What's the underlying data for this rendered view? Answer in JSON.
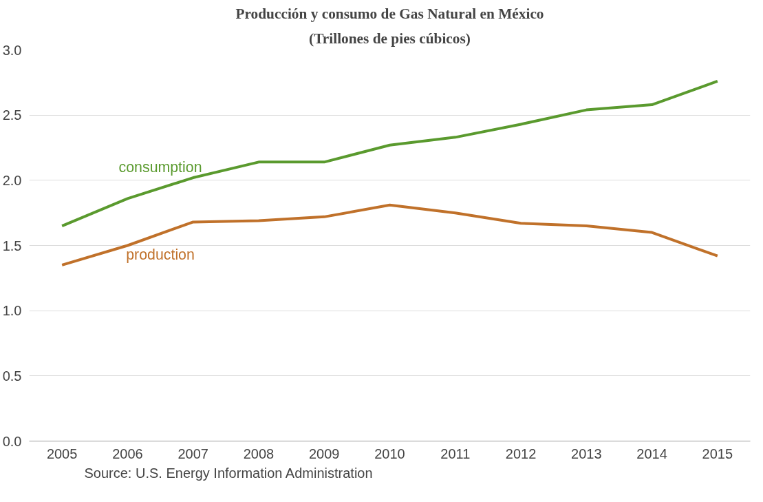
{
  "chart_data": {
    "type": "line",
    "title": "Producción y consumo de Gas Natural en México",
    "subtitle": "(Trillones de pies cúbicos)",
    "categories": [
      "2005",
      "2006",
      "2007",
      "2008",
      "2009",
      "2010",
      "2011",
      "2012",
      "2013",
      "2014",
      "2015"
    ],
    "series": [
      {
        "name": "consumption",
        "color": "#5a9a2e",
        "values": [
          1.65,
          1.86,
          2.02,
          2.14,
          2.14,
          2.27,
          2.33,
          2.43,
          2.54,
          2.58,
          2.76
        ]
      },
      {
        "name": "production",
        "color": "#c0712a",
        "values": [
          1.35,
          1.5,
          1.68,
          1.69,
          1.72,
          1.81,
          1.75,
          1.67,
          1.65,
          1.6,
          1.42
        ]
      }
    ],
    "ylim": [
      0,
      3
    ],
    "yticks": [
      {
        "value": 0,
        "label": "0.0"
      },
      {
        "value": 0.5,
        "label": "0.5"
      },
      {
        "value": 1,
        "label": "1.0"
      },
      {
        "value": 1.5,
        "label": "1.5"
      },
      {
        "value": 2,
        "label": "2.0"
      },
      {
        "value": 2.5,
        "label": "2.5"
      },
      {
        "value": 3,
        "label": "3.0"
      }
    ],
    "grid": "y",
    "marker": "none",
    "line_style": "solid",
    "annotations": [
      "Source: U.S. Energy Information Administration"
    ]
  }
}
